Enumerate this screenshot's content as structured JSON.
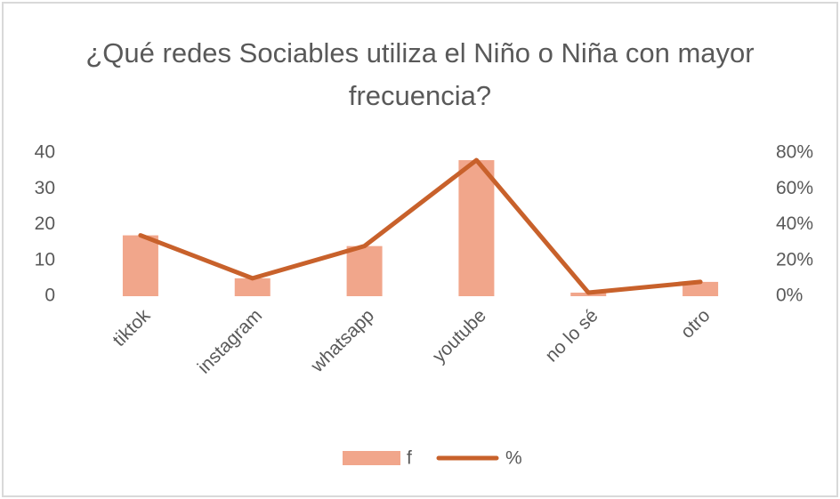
{
  "chart_data": {
    "type": "bar",
    "title": "¿Qué redes Sociables utiliza el Niño o Niña con mayor frecuencia?",
    "categories": [
      "tiktok",
      "instagram",
      "whatsapp",
      "youtube",
      "no lo sé",
      "otro"
    ],
    "series": [
      {
        "name": "f",
        "type": "bar",
        "color": "#f1a68b",
        "values": [
          17,
          5,
          14,
          38,
          1,
          4
        ]
      },
      {
        "name": "%",
        "type": "line",
        "axis": "y2",
        "color": "#c8612b",
        "values": [
          34,
          10,
          28,
          76,
          2,
          8
        ]
      }
    ],
    "ylim": [
      0,
      40
    ],
    "yticks": [
      0,
      10,
      20,
      30,
      40
    ],
    "y2lim": [
      0,
      80
    ],
    "y2ticks": [
      {
        "value": 0,
        "label": "0%"
      },
      {
        "value": 20,
        "label": "20%"
      },
      {
        "value": 40,
        "label": "40%"
      },
      {
        "value": 60,
        "label": "60%"
      },
      {
        "value": 80,
        "label": "80%"
      }
    ],
    "legend": "bottom"
  }
}
